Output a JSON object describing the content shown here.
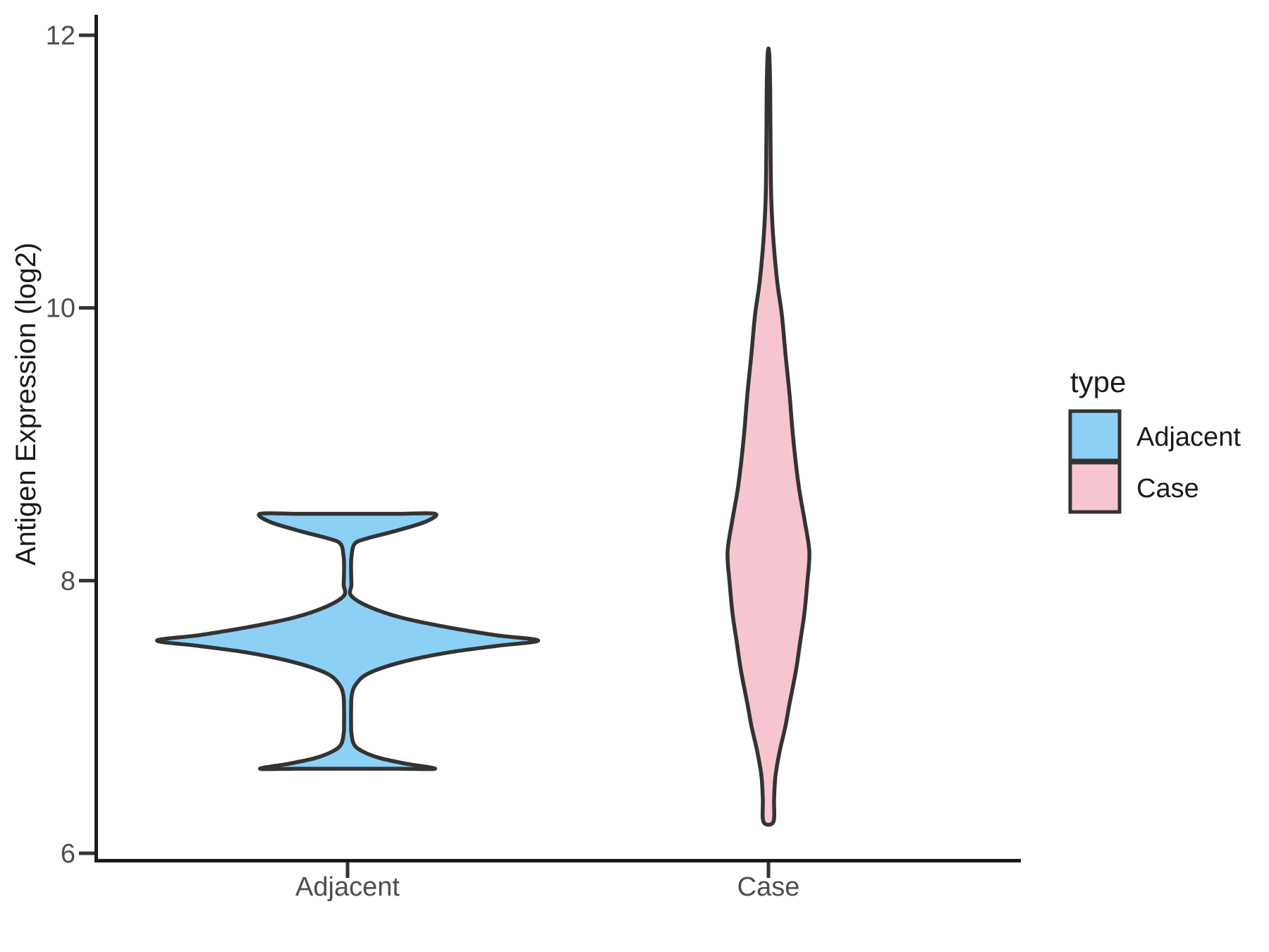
{
  "figure": {
    "background": "#ffffff",
    "axis_color": "#1a1a1a",
    "tick_color": "#333333",
    "tick_label_color": "#4d4d4d",
    "violin_outline_color": "#333333"
  },
  "chart_data": {
    "type": "violin",
    "title": "",
    "xlabel": "",
    "ylabel": "Antigen Expression (log2)",
    "categories": [
      "Adjacent",
      "Case"
    ],
    "y_ticks": [
      6,
      8,
      10,
      12
    ],
    "ylim": [
      5.95,
      12.15
    ],
    "grid": "off",
    "legend": {
      "title": "type",
      "position": "right",
      "entries": [
        {
          "label": "Adjacent",
          "color": "#8DD0F5"
        },
        {
          "label": "Case",
          "color": "#F7C5D0"
        }
      ]
    },
    "series": [
      {
        "name": "Adjacent",
        "color": "#8DD0F5",
        "data_range": [
          6.62,
          8.49
        ],
        "density_modes": [
          6.62,
          7.56,
          8.49
        ],
        "flat_top": true,
        "flat_bottom": true,
        "profile": [
          [
            8.49,
            0.208
          ],
          [
            8.43,
            0.184
          ],
          [
            8.36,
            0.109
          ],
          [
            8.31,
            0.047
          ],
          [
            8.27,
            0.017
          ],
          [
            8.17,
            0.0092
          ],
          [
            8.07,
            0.0084
          ],
          [
            7.97,
            0.0092
          ],
          [
            7.89,
            0.0084
          ],
          [
            7.81,
            0.05
          ],
          [
            7.73,
            0.126
          ],
          [
            7.66,
            0.234
          ],
          [
            7.6,
            0.352
          ],
          [
            7.56,
            0.453
          ],
          [
            7.52,
            0.352
          ],
          [
            7.47,
            0.234
          ],
          [
            7.4,
            0.126
          ],
          [
            7.32,
            0.05
          ],
          [
            7.24,
            0.02
          ],
          [
            7.16,
            0.01
          ],
          [
            7.05,
            0.0084
          ],
          [
            6.95,
            0.0084
          ],
          [
            6.88,
            0.0092
          ],
          [
            6.8,
            0.015
          ],
          [
            6.75,
            0.034
          ],
          [
            6.7,
            0.075
          ],
          [
            6.66,
            0.134
          ],
          [
            6.62,
            0.208
          ]
        ]
      },
      {
        "name": "Case",
        "color": "#F7C5D0",
        "data_range": [
          6.23,
          11.87
        ],
        "density_modes": [
          8.21
        ],
        "flat_top": false,
        "flat_bottom": true,
        "profile": [
          [
            11.87,
            0.0017
          ],
          [
            11.6,
            0.0042
          ],
          [
            11.2,
            0.005
          ],
          [
            10.8,
            0.0067
          ],
          [
            10.5,
            0.0117
          ],
          [
            10.19,
            0.021
          ],
          [
            9.95,
            0.0318
          ],
          [
            9.67,
            0.0402
          ],
          [
            9.36,
            0.0503
          ],
          [
            9.05,
            0.0586
          ],
          [
            8.69,
            0.072
          ],
          [
            8.45,
            0.0854
          ],
          [
            8.21,
            0.0971
          ],
          [
            7.98,
            0.0921
          ],
          [
            7.76,
            0.0854
          ],
          [
            7.55,
            0.0754
          ],
          [
            7.34,
            0.0653
          ],
          [
            7.1,
            0.0503
          ],
          [
            6.93,
            0.0402
          ],
          [
            6.75,
            0.0268
          ],
          [
            6.57,
            0.0168
          ],
          [
            6.4,
            0.0134
          ],
          [
            6.23,
            0.0117
          ]
        ]
      }
    ]
  }
}
